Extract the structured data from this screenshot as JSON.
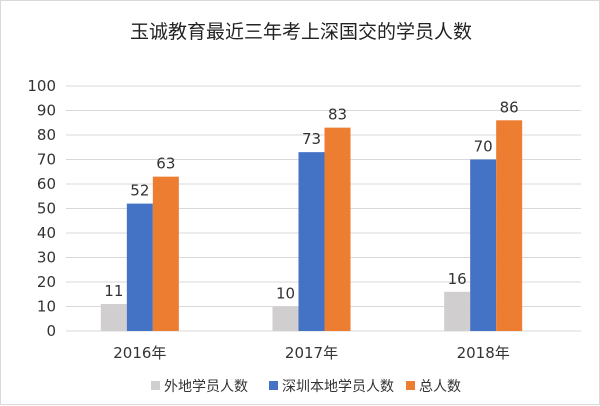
{
  "chart_data": {
    "type": "bar",
    "title": "玉诚教育最近三年考上深国交的学员人数",
    "categories": [
      "2016年",
      "2017年",
      "2018年"
    ],
    "series": [
      {
        "name": "外地学员人数",
        "values": [
          11,
          10,
          16
        ],
        "color": "#d0cece"
      },
      {
        "name": "深圳本地学员人数",
        "values": [
          52,
          73,
          70
        ],
        "color": "#4472c4"
      },
      {
        "name": "总人数",
        "values": [
          63,
          83,
          86
        ],
        "color": "#ed7d31"
      }
    ],
    "ylim": [
      0,
      100
    ],
    "yticks": [
      0,
      10,
      20,
      30,
      40,
      50,
      60,
      70,
      80,
      90,
      100
    ],
    "grid": true,
    "data_labels": true,
    "legend_position": "bottom"
  }
}
